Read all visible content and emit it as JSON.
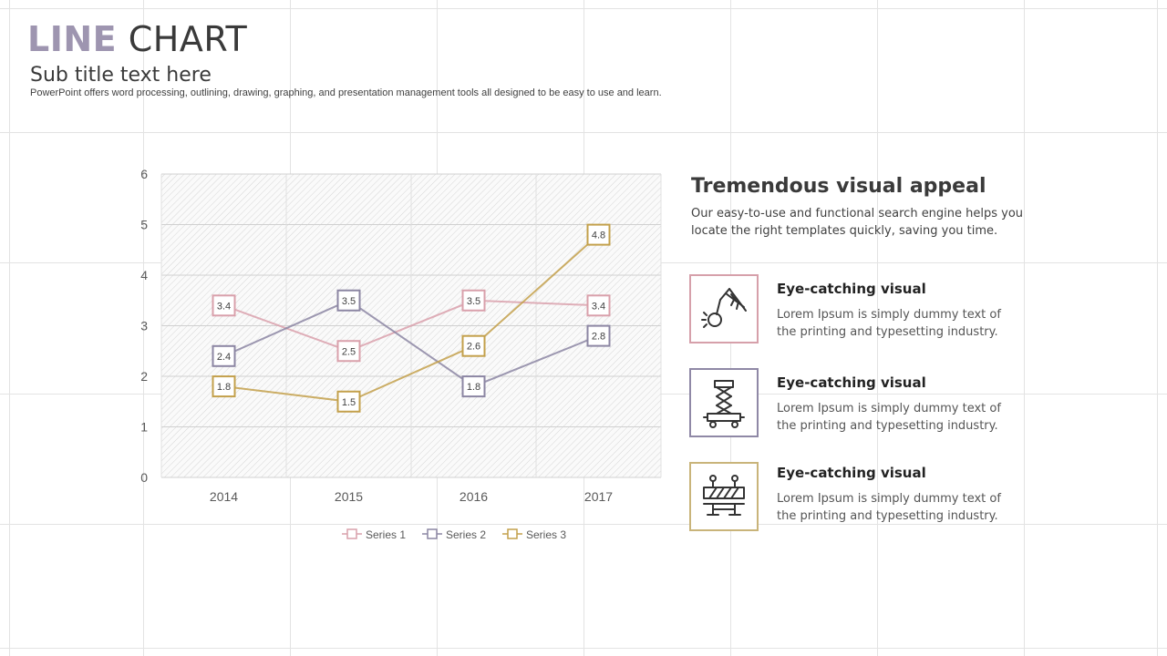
{
  "header": {
    "title_accent": "LINE",
    "title_rest": "CHART",
    "subtitle": "Sub title text here",
    "description": "PowerPoint offers word processing, outlining, drawing, graphing, and presentation management tools all designed to be easy to use and learn."
  },
  "side": {
    "heading": "Tremendous visual appeal",
    "text": "Our easy-to-use and functional search engine helps you locate the right templates quickly, saving you time.",
    "features": [
      {
        "title": "Eye-catching visual",
        "text": "Lorem Ipsum is simply dummy text of the printing and typesetting industry.",
        "icon": "wrecking-ball-crane-icon",
        "color": "#d6a0aa"
      },
      {
        "title": "Eye-catching visual",
        "text": "Lorem Ipsum is simply dummy text of the printing and typesetting industry.",
        "icon": "scissor-lift-icon",
        "color": "#8f88a6"
      },
      {
        "title": "Eye-catching visual",
        "text": "Lorem Ipsum is simply dummy text of the printing and typesetting industry.",
        "icon": "road-barrier-icon",
        "color": "#c9b47a"
      }
    ]
  },
  "chart_data": {
    "type": "line",
    "categories": [
      "2014",
      "2015",
      "2016",
      "2017"
    ],
    "series": [
      {
        "name": "Series 1",
        "values": [
          3.4,
          2.5,
          3.5,
          3.4
        ],
        "color": "#d9a0ab"
      },
      {
        "name": "Series 2",
        "values": [
          2.4,
          3.5,
          1.8,
          2.8
        ],
        "color": "#8c86a3"
      },
      {
        "name": "Series 3",
        "values": [
          1.8,
          1.5,
          2.6,
          4.8
        ],
        "color": "#c3a04b"
      }
    ],
    "ylim": [
      0,
      6
    ],
    "yticks": [
      0,
      1,
      2,
      3,
      4,
      5,
      6
    ],
    "grid": true,
    "data_labels": true,
    "legend": "bottom"
  }
}
